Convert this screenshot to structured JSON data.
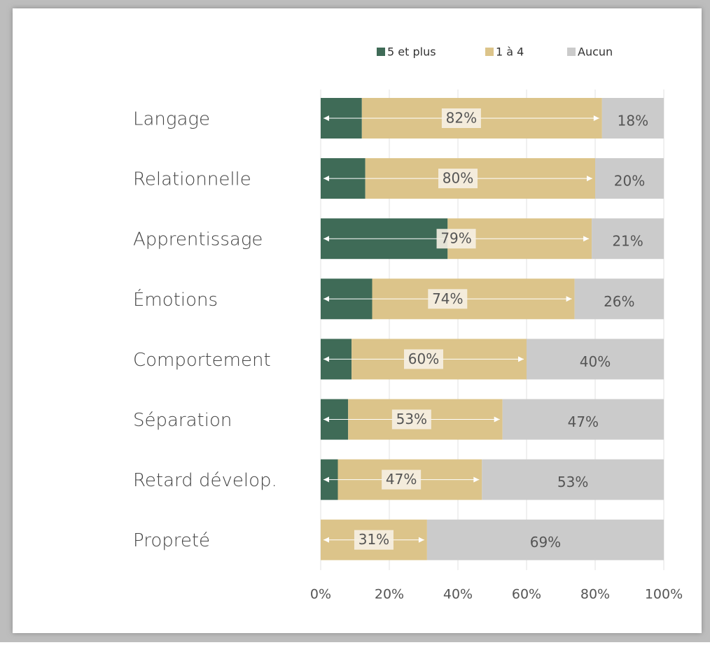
{
  "chart_data": {
    "type": "stacked-bar-horizontal",
    "categories": [
      "Langage",
      "Relationnelle",
      "Apprentissage",
      "Émotions",
      "Comportement",
      "Séparation",
      "Retard dévelop.",
      "Propreté"
    ],
    "series": [
      {
        "name": "5 et plus",
        "color": "#3f6b57",
        "values": [
          12,
          13,
          37,
          15,
          9,
          8,
          5,
          0
        ]
      },
      {
        "name": "1 à 4",
        "color": "#dcc48a",
        "values": [
          70,
          67,
          42,
          59,
          51,
          45,
          42,
          31
        ]
      },
      {
        "name": "Aucun",
        "color": "#cbcbcb",
        "values": [
          18,
          20,
          21,
          26,
          40,
          47,
          53,
          69
        ],
        "value_labels": [
          "18%",
          "20%",
          "21%",
          "26%",
          "40%",
          "47%",
          "53%",
          "69%"
        ]
      }
    ],
    "span_labels": [
      "82%",
      "80%",
      "79%",
      "74%",
      "60%",
      "53%",
      "47%",
      "31%"
    ],
    "xlim": [
      0,
      100
    ],
    "xticks": [
      {
        "value": 0,
        "label": "0%"
      },
      {
        "value": 20,
        "label": "20%"
      },
      {
        "value": 40,
        "label": "40%"
      },
      {
        "value": 60,
        "label": "60%"
      },
      {
        "value": 80,
        "label": "80%"
      },
      {
        "value": 100,
        "label": "100%"
      }
    ],
    "grid": true,
    "legend": "top"
  }
}
